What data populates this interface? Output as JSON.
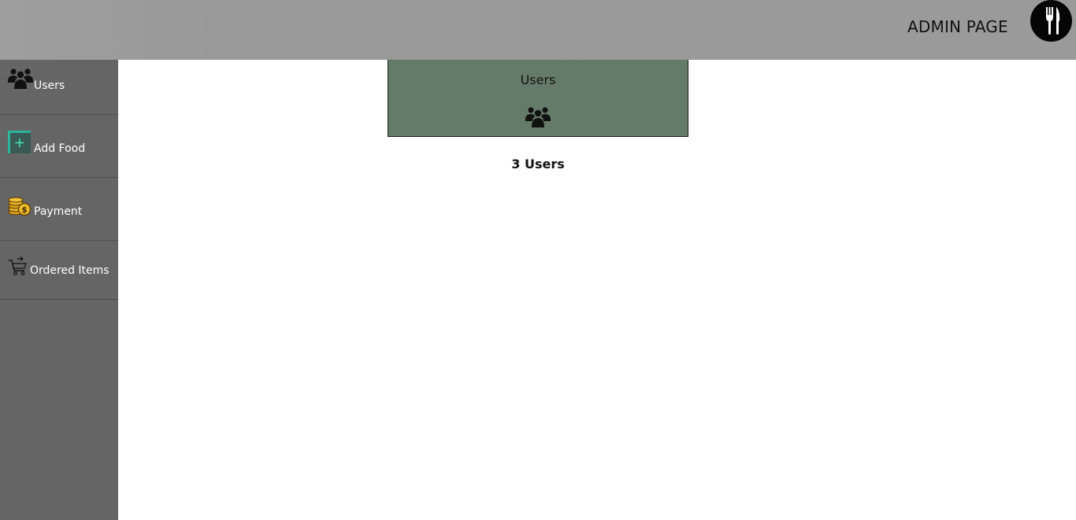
{
  "header": {
    "title": "ADMIN PAGE",
    "logo_icon": "fork-knife-icon"
  },
  "sidebar": {
    "items": [
      {
        "label": "Users",
        "icon": "users-group-icon"
      },
      {
        "label": "Add Food",
        "icon": "add-square-icon"
      },
      {
        "label": "Payment",
        "icon": "coins-icon"
      },
      {
        "label": "Ordered Items",
        "icon": "cart-icon"
      }
    ]
  },
  "main": {
    "card": {
      "title": "Users",
      "icon": "users-group-icon"
    },
    "user_count": "3 Users"
  },
  "colors": {
    "header_bg": "#9a9a9a",
    "sidebar_bg": "#656565",
    "card_bg": "#657b6a",
    "logo_bg": "#050505"
  }
}
